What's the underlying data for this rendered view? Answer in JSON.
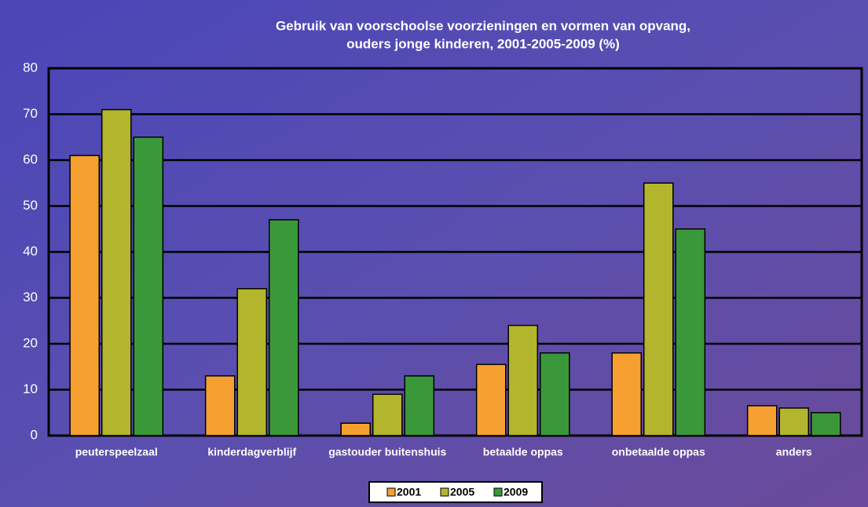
{
  "chart_data": {
    "type": "bar",
    "title": "Gebruik van voorschoolse voorzieningen en vormen van opvang,",
    "subtitle": "ouders jonge kinderen, 2001-2005-2009 (%)",
    "categories": [
      "peuterspeelzaal",
      "kinderdagverblijf",
      "gastouder buitenshuis",
      "betaalde oppas",
      "onbetaalde oppas",
      "anders"
    ],
    "series": [
      {
        "name": "2001",
        "color": "#f5a030",
        "values": [
          61,
          13,
          2.7,
          15.5,
          18,
          6.5
        ]
      },
      {
        "name": "2005",
        "color": "#b3b52c",
        "values": [
          71,
          32,
          9,
          24,
          55,
          6
        ]
      },
      {
        "name": "2009",
        "color": "#3a983a",
        "values": [
          65,
          47,
          13,
          18,
          45,
          5
        ]
      }
    ],
    "ylim": [
      0,
      80
    ],
    "yticks": [
      0,
      10,
      20,
      30,
      40,
      50,
      60,
      70,
      80
    ],
    "grid": true,
    "legend": "bottom"
  }
}
